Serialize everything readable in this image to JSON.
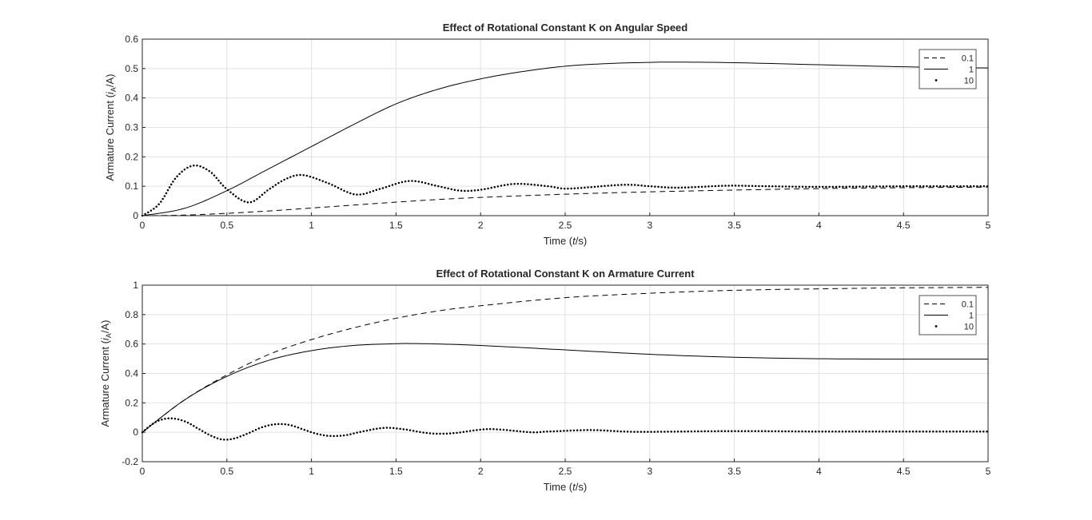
{
  "chart_data": [
    {
      "type": "line",
      "title": "Effect of Rotational Constant K on Angular Speed",
      "xlabel": {
        "pre": "Time (",
        "var": "t",
        "post": "/s)"
      },
      "ylabel": {
        "pre": "Armature Current (",
        "var": "i",
        "sub": "A",
        "post": "/A)"
      },
      "xlim": [
        0,
        5
      ],
      "ylim": [
        0,
        0.6
      ],
      "xticks": [
        "0",
        "0.5",
        "1",
        "1.5",
        "2",
        "2.5",
        "3",
        "3.5",
        "4",
        "4.5",
        "5"
      ],
      "yticks": [
        "0",
        "0.1",
        "0.2",
        "0.3",
        "0.4",
        "0.5",
        "0.6"
      ],
      "grid": true,
      "legend_position": "top-right",
      "series": [
        {
          "name": "0.1",
          "style": "dashed",
          "x": [
            0,
            0.25,
            0.5,
            0.75,
            1,
            1.25,
            1.5,
            1.75,
            2,
            2.5,
            3,
            3.5,
            4,
            4.5,
            5
          ],
          "y": [
            0,
            0.002,
            0.008,
            0.016,
            0.026,
            0.036,
            0.046,
            0.055,
            0.062,
            0.073,
            0.081,
            0.087,
            0.092,
            0.095,
            0.097
          ]
        },
        {
          "name": "1",
          "style": "solid",
          "x": [
            0,
            0.25,
            0.5,
            0.75,
            1,
            1.25,
            1.5,
            1.75,
            2,
            2.25,
            2.5,
            2.75,
            3,
            3.15,
            3.5,
            4,
            4.5,
            5
          ],
          "y": [
            0,
            0.025,
            0.085,
            0.16,
            0.235,
            0.31,
            0.38,
            0.43,
            0.465,
            0.49,
            0.508,
            0.517,
            0.521,
            0.522,
            0.52,
            0.513,
            0.506,
            0.502
          ]
        },
        {
          "name": "10",
          "style": "dotted",
          "x": [
            0,
            0.1,
            0.2,
            0.3,
            0.4,
            0.5,
            0.63,
            0.75,
            0.85,
            0.95,
            1.1,
            1.26,
            1.4,
            1.58,
            1.75,
            1.88,
            2.0,
            2.2,
            2.4,
            2.52,
            2.84,
            3.0,
            3.15,
            3.3,
            3.47,
            3.7,
            4,
            4.5,
            5
          ],
          "y": [
            0,
            0.04,
            0.13,
            0.17,
            0.15,
            0.09,
            0.045,
            0.09,
            0.125,
            0.138,
            0.11,
            0.072,
            0.09,
            0.118,
            0.1,
            0.085,
            0.088,
            0.108,
            0.1,
            0.092,
            0.105,
            0.1,
            0.095,
            0.098,
            0.102,
            0.1,
            0.098,
            0.1,
            0.1
          ]
        }
      ]
    },
    {
      "type": "line",
      "title": "Effect of Rotational Constant K on Armature Current",
      "xlabel": {
        "pre": "Time (",
        "var": "t",
        "post": "/s)"
      },
      "ylabel": {
        "pre": "Armature Current (",
        "var": "i",
        "sub": "A",
        "post": "/A)"
      },
      "xlim": [
        0,
        5
      ],
      "ylim": [
        -0.2,
        1
      ],
      "xticks": [
        "0",
        "0.5",
        "1",
        "1.5",
        "2",
        "2.5",
        "3",
        "3.5",
        "4",
        "4.5",
        "5"
      ],
      "yticks": [
        "-0.2",
        "0",
        "0.2",
        "0.4",
        "0.6",
        "0.8",
        "1"
      ],
      "grid": true,
      "legend_position": "top-right",
      "series": [
        {
          "name": "0.1",
          "style": "dashed",
          "x": [
            0,
            0.25,
            0.5,
            0.75,
            1,
            1.25,
            1.5,
            1.75,
            2,
            2.5,
            3,
            3.5,
            4,
            4.5,
            5
          ],
          "y": [
            0,
            0.22,
            0.39,
            0.53,
            0.63,
            0.71,
            0.775,
            0.825,
            0.86,
            0.915,
            0.945,
            0.965,
            0.975,
            0.982,
            0.985
          ]
        },
        {
          "name": "1",
          "style": "solid",
          "x": [
            0,
            0.25,
            0.5,
            0.75,
            1,
            1.25,
            1.5,
            1.6,
            1.75,
            2,
            2.5,
            3,
            3.5,
            4,
            4.5,
            5
          ],
          "y": [
            0,
            0.22,
            0.38,
            0.49,
            0.555,
            0.59,
            0.602,
            0.603,
            0.6,
            0.59,
            0.56,
            0.53,
            0.51,
            0.5,
            0.497,
            0.497
          ]
        },
        {
          "name": "10",
          "style": "dotted",
          "x": [
            0,
            0.08,
            0.16,
            0.25,
            0.33,
            0.41,
            0.48,
            0.55,
            0.63,
            0.71,
            0.79,
            0.87,
            0.95,
            1.03,
            1.11,
            1.2,
            1.3,
            1.43,
            1.55,
            1.65,
            1.74,
            1.85,
            2.0,
            2.1,
            2.3,
            2.4,
            2.65,
            2.85,
            3.0,
            3.5,
            4,
            4.5,
            5
          ],
          "y": [
            0,
            0.07,
            0.095,
            0.075,
            0.025,
            -0.025,
            -0.05,
            -0.04,
            -0.005,
            0.035,
            0.055,
            0.05,
            0.02,
            -0.01,
            -0.025,
            -0.02,
            0.005,
            0.03,
            0.02,
            0.0,
            -0.01,
            -0.005,
            0.018,
            0.02,
            0.0,
            0.005,
            0.015,
            0.005,
            0.003,
            0.008,
            0.005,
            0.005,
            0.005
          ]
        }
      ]
    }
  ]
}
